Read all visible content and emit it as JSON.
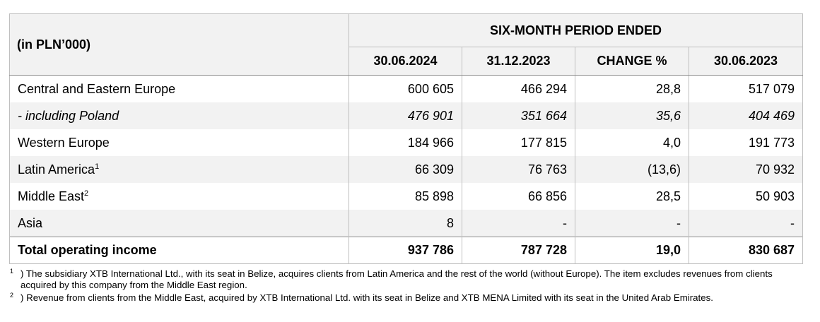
{
  "table": {
    "unit_label": "(in PLN’000)",
    "group_header": "SIX-MONTH PERIOD ENDED",
    "columns": [
      "30.06.2024",
      "31.12.2023",
      "CHANGE %",
      "30.06.2023"
    ],
    "rows": [
      {
        "name": "Central and Eastern Europe",
        "sup": "",
        "values": [
          "600 605",
          "466 294",
          "28,8",
          "517 079"
        ]
      },
      {
        "name": "- including Poland",
        "sup": "",
        "values": [
          "476 901",
          "351 664",
          "35,6",
          "404 469"
        ]
      },
      {
        "name": "Western Europe",
        "sup": "",
        "values": [
          "184 966",
          "177 815",
          "4,0",
          "191 773"
        ]
      },
      {
        "name": "Latin America",
        "sup": "1",
        "values": [
          "66 309",
          "76 763",
          "(13,6)",
          "70 932"
        ]
      },
      {
        "name": "Middle East",
        "sup": "2",
        "values": [
          "85 898",
          "66 856",
          "28,5",
          "50 903"
        ]
      },
      {
        "name": "Asia",
        "sup": "",
        "values": [
          "8",
          "-",
          "-",
          "-"
        ]
      }
    ],
    "total": {
      "name": "Total operating income",
      "values": [
        "937 786",
        "787 728",
        "19,0",
        "830 687"
      ]
    }
  },
  "footnotes": [
    {
      "mark": "1",
      "text": ") The subsidiary XTB International Ltd., with its seat in Belize, acquires clients from Latin America and the rest of the world (without Europe). The item excludes revenues from clients acquired by this company from the Middle East region."
    },
    {
      "mark": "2",
      "text": ") Revenue from clients from the Middle East, acquired by XTB International Ltd. with its seat in Belize and XTB MENA Limited with its seat in the United Arab Emirates."
    }
  ]
}
